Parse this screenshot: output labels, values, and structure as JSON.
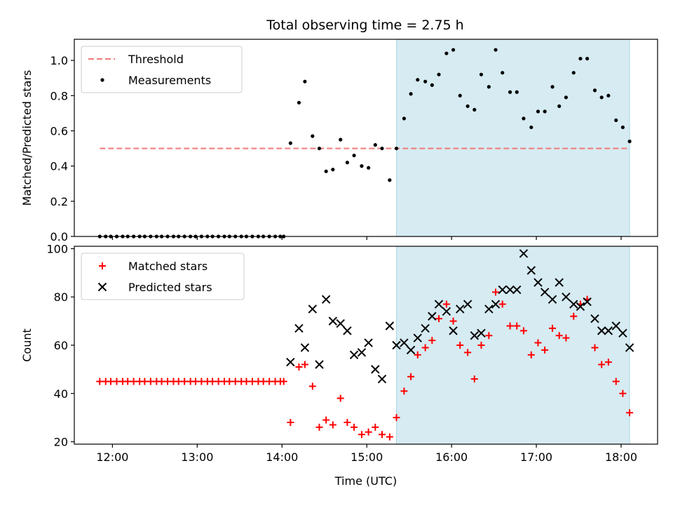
{
  "figure": {
    "title": "Total observing time = 2.75 h",
    "colors": {
      "threshold": "#f08080",
      "measurement": "#000000",
      "matched": "#ff0000",
      "predicted": "#000000",
      "highlight": "#add8e6"
    }
  },
  "chart_data": [
    {
      "type": "scatter",
      "name": "ratio-panel",
      "xlabel": "",
      "ylabel": "Matched/Predicted stars",
      "xlim": [
        11.55,
        18.43
      ],
      "ylim": [
        0,
        1.12
      ],
      "xticks": [
        12,
        13,
        14,
        15,
        16,
        17,
        18
      ],
      "xtick_labels": [
        "",
        "",
        "",
        "",
        "",
        "",
        ""
      ],
      "yticks": [
        0,
        0.2,
        0.4,
        0.6,
        0.8,
        1.0
      ],
      "ytick_labels": [
        "0.0",
        "0.2",
        "0.4",
        "0.6",
        "0.8",
        "1.0"
      ],
      "highlight": {
        "x0": 15.35,
        "x1": 18.1
      },
      "legend": {
        "placement": "upper-left",
        "entries": [
          "Threshold",
          "Measurements"
        ]
      },
      "threshold": {
        "name": "Threshold",
        "y": 0.5,
        "x0": 11.85,
        "x1": 18.1
      },
      "series": [
        {
          "name": "Measurements",
          "x": [
            11.85,
            11.92,
            11.98,
            12.05,
            12.12,
            12.18,
            12.25,
            12.32,
            12.38,
            12.45,
            12.52,
            12.58,
            12.65,
            12.72,
            12.78,
            12.85,
            12.92,
            12.98,
            13.05,
            13.12,
            13.18,
            13.25,
            13.32,
            13.38,
            13.45,
            13.52,
            13.58,
            13.65,
            13.72,
            13.78,
            13.85,
            13.92,
            13.98,
            14.02,
            14.1,
            14.2,
            14.27,
            14.36,
            14.44,
            14.52,
            14.6,
            14.69,
            14.77,
            14.85,
            14.94,
            15.02,
            15.1,
            15.18,
            15.27,
            15.35,
            15.44,
            15.52,
            15.6,
            15.69,
            15.77,
            15.85,
            15.94,
            16.02,
            16.1,
            16.19,
            16.27,
            16.35,
            16.44,
            16.52,
            16.6,
            16.69,
            16.77,
            16.85,
            16.94,
            17.02,
            17.1,
            17.19,
            17.27,
            17.35,
            17.44,
            17.52,
            17.6,
            17.69,
            17.77,
            17.85,
            17.94,
            18.02,
            18.1
          ],
          "y": [
            0,
            0,
            0,
            0,
            0,
            0,
            0,
            0,
            0,
            0,
            0,
            0,
            0,
            0,
            0,
            0,
            0,
            0,
            0,
            0,
            0,
            0,
            0,
            0,
            0,
            0,
            0,
            0,
            0,
            0,
            0,
            0,
            0,
            0,
            0.53,
            0.76,
            0.88,
            0.57,
            0.5,
            0.37,
            0.38,
            0.55,
            0.42,
            0.46,
            0.4,
            0.39,
            0.52,
            0.5,
            0.32,
            0.5,
            0.67,
            0.81,
            0.89,
            0.88,
            0.86,
            0.92,
            1.04,
            1.06,
            0.8,
            0.74,
            0.72,
            0.92,
            0.85,
            1.06,
            0.93,
            0.82,
            0.82,
            0.67,
            0.62,
            0.71,
            0.71,
            0.85,
            0.74,
            0.79,
            0.93,
            1.01,
            1.01,
            0.83,
            0.79,
            0.8,
            0.66,
            0.62,
            0.54
          ]
        }
      ]
    },
    {
      "type": "scatter",
      "name": "count-panel",
      "xlabel": "Time (UTC)",
      "ylabel": "Count",
      "xlim": [
        11.55,
        18.43
      ],
      "ylim": [
        19,
        101
      ],
      "xticks": [
        12,
        13,
        14,
        15,
        16,
        17,
        18
      ],
      "xtick_labels": [
        "12:00",
        "13:00",
        "14:00",
        "15:00",
        "16:00",
        "17:00",
        "18:00"
      ],
      "yticks": [
        20,
        40,
        60,
        80,
        100
      ],
      "ytick_labels": [
        "20",
        "40",
        "60",
        "80",
        "100"
      ],
      "highlight": {
        "x0": 15.35,
        "x1": 18.1
      },
      "legend": {
        "placement": "upper-left",
        "entries": [
          "Matched stars",
          "Predicted stars"
        ]
      },
      "series": [
        {
          "name": "Matched stars",
          "marker": "plus",
          "x": [
            11.85,
            11.92,
            11.98,
            12.05,
            12.12,
            12.18,
            12.25,
            12.32,
            12.38,
            12.45,
            12.52,
            12.58,
            12.65,
            12.72,
            12.78,
            12.85,
            12.92,
            12.98,
            13.05,
            13.12,
            13.18,
            13.25,
            13.32,
            13.38,
            13.45,
            13.52,
            13.58,
            13.65,
            13.72,
            13.78,
            13.85,
            13.92,
            13.98,
            14.02,
            14.1,
            14.2,
            14.27,
            14.36,
            14.44,
            14.52,
            14.6,
            14.69,
            14.77,
            14.85,
            14.94,
            15.02,
            15.1,
            15.18,
            15.27,
            15.35,
            15.44,
            15.52,
            15.6,
            15.69,
            15.77,
            15.85,
            15.94,
            16.02,
            16.1,
            16.19,
            16.27,
            16.35,
            16.44,
            16.52,
            16.6,
            16.69,
            16.77,
            16.85,
            16.94,
            17.02,
            17.1,
            17.19,
            17.27,
            17.35,
            17.44,
            17.52,
            17.6,
            17.69,
            17.77,
            17.85,
            17.94,
            18.02,
            18.1
          ],
          "y": [
            45,
            45,
            45,
            45,
            45,
            45,
            45,
            45,
            45,
            45,
            45,
            45,
            45,
            45,
            45,
            45,
            45,
            45,
            45,
            45,
            45,
            45,
            45,
            45,
            45,
            45,
            45,
            45,
            45,
            45,
            45,
            45,
            45,
            45,
            28,
            51,
            52,
            43,
            26,
            29,
            27,
            38,
            28,
            26,
            23,
            24,
            26,
            23,
            22,
            30,
            41,
            47,
            56,
            59,
            62,
            71,
            77,
            70,
            60,
            57,
            46,
            60,
            64,
            82,
            77,
            68,
            68,
            66,
            56,
            61,
            58,
            67,
            64,
            63,
            72,
            77,
            79,
            59,
            52,
            53,
            45,
            40,
            32
          ]
        },
        {
          "name": "Predicted stars",
          "marker": "x",
          "x": [
            14.1,
            14.2,
            14.27,
            14.36,
            14.44,
            14.52,
            14.6,
            14.69,
            14.77,
            14.85,
            14.94,
            15.02,
            15.1,
            15.18,
            15.27,
            15.35,
            15.44,
            15.52,
            15.6,
            15.69,
            15.77,
            15.85,
            15.94,
            16.02,
            16.1,
            16.19,
            16.27,
            16.35,
            16.44,
            16.52,
            16.6,
            16.69,
            16.77,
            16.85,
            16.94,
            17.02,
            17.1,
            17.19,
            17.27,
            17.35,
            17.44,
            17.52,
            17.6,
            17.69,
            17.77,
            17.85,
            17.94,
            18.02,
            18.1
          ],
          "y": [
            53,
            67,
            59,
            75,
            52,
            79,
            70,
            69,
            66,
            56,
            57,
            61,
            50,
            46,
            68,
            60,
            61,
            58,
            63,
            67,
            72,
            77,
            74,
            66,
            75,
            77,
            64,
            65,
            75,
            77,
            83,
            83,
            83,
            98,
            91,
            86,
            82,
            79,
            86,
            80,
            77,
            76,
            78,
            71,
            66,
            66,
            68,
            65,
            59
          ]
        }
      ]
    }
  ]
}
